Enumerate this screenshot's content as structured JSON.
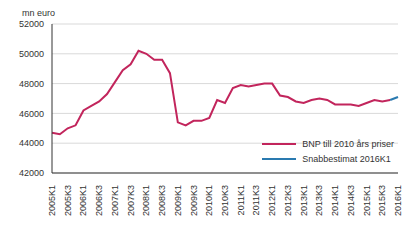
{
  "chart_data": {
    "type": "line",
    "y_label": "mn euro",
    "categories": [
      "2005K1",
      null,
      "2005K3",
      null,
      "2006K1",
      null,
      "2006K3",
      null,
      "2007K1",
      null,
      "2007K3",
      null,
      "2008K1",
      null,
      "2008K3",
      null,
      "2009K1",
      null,
      "2009K3",
      null,
      "2010K1",
      null,
      "2010K3",
      null,
      "2011K1",
      null,
      "2011K3",
      null,
      "2012K1",
      null,
      "2012K3",
      null,
      "2013K1",
      null,
      "2013K3",
      null,
      "2014K1",
      null,
      "2014K3",
      null,
      "2015K1",
      null,
      "2015K3",
      null,
      "2016K1"
    ],
    "series": [
      {
        "name": "BNP till 2010 års priser",
        "color": "#c2255c",
        "values": [
          44700,
          44600,
          45000,
          45200,
          46200,
          46500,
          46800,
          47300,
          48100,
          48900,
          49300,
          50200,
          50000,
          49600,
          49600,
          48700,
          45400,
          45200,
          45500,
          45500,
          45700,
          46900,
          46700,
          47700,
          47900,
          47800,
          47900,
          48000,
          48000,
          47200,
          47100,
          46800,
          46700,
          46900,
          47000,
          46900,
          46600,
          46600,
          46600,
          46500,
          46700,
          46900,
          46800,
          46900,
          null
        ]
      },
      {
        "name": "Snabbestimat 2016K1",
        "color": "#2a7ab0",
        "values": [
          null,
          null,
          null,
          null,
          null,
          null,
          null,
          null,
          null,
          null,
          null,
          null,
          null,
          null,
          null,
          null,
          null,
          null,
          null,
          null,
          null,
          null,
          null,
          null,
          null,
          null,
          null,
          null,
          null,
          null,
          null,
          null,
          null,
          null,
          null,
          null,
          null,
          null,
          null,
          null,
          null,
          null,
          null,
          46900,
          47100
        ]
      }
    ],
    "ylim": [
      42000,
      52000
    ],
    "yticks": [
      42000,
      44000,
      46000,
      48000,
      50000,
      52000
    ],
    "grid": true,
    "legend": "lower right"
  }
}
